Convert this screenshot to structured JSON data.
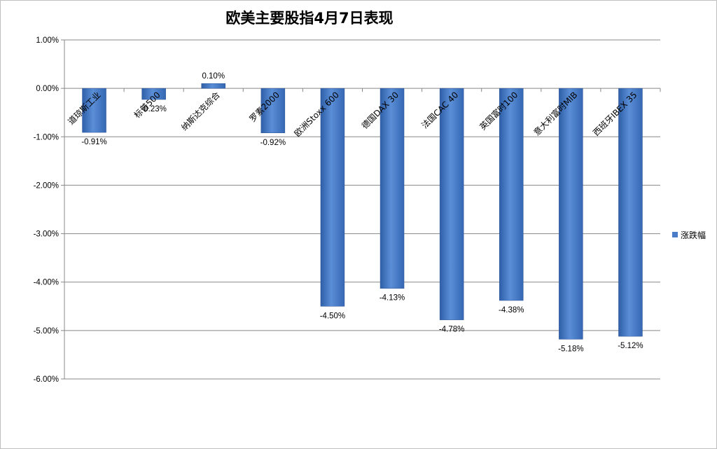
{
  "chart_data": {
    "type": "bar",
    "title": "欧美主要股指4月7日表现",
    "categories": [
      "道琼斯工业",
      "标普500",
      "纳斯达克综合",
      "罗素2000",
      "欧洲Stoxx 600",
      "德国DAX 30",
      "法国CAC 40",
      "英国富时100",
      "意大利富时MIB",
      "西班牙IBEX 35"
    ],
    "series": [
      {
        "name": "涨跌幅",
        "values": [
          -0.91,
          -0.23,
          0.1,
          -0.92,
          -4.5,
          -4.13,
          -4.78,
          -4.38,
          -5.18,
          -5.12
        ],
        "labels": [
          "-0.91%",
          "-0.23%",
          "0.10%",
          "-0.92%",
          "-4.50%",
          "-4.13%",
          "-4.78%",
          "-4.38%",
          "-5.18%",
          "-5.12%"
        ],
        "color": "#4a7cc8"
      }
    ],
    "ylim": [
      -6,
      1
    ],
    "yticks": [
      1,
      0,
      -1,
      -2,
      -3,
      -4,
      -5,
      -6
    ],
    "ytick_labels": [
      "1.00%",
      "0.00%",
      "-1.00%",
      "-2.00%",
      "-3.00%",
      "-4.00%",
      "-5.00%",
      "-6.00%"
    ],
    "grid": true,
    "legend_position": "right"
  }
}
